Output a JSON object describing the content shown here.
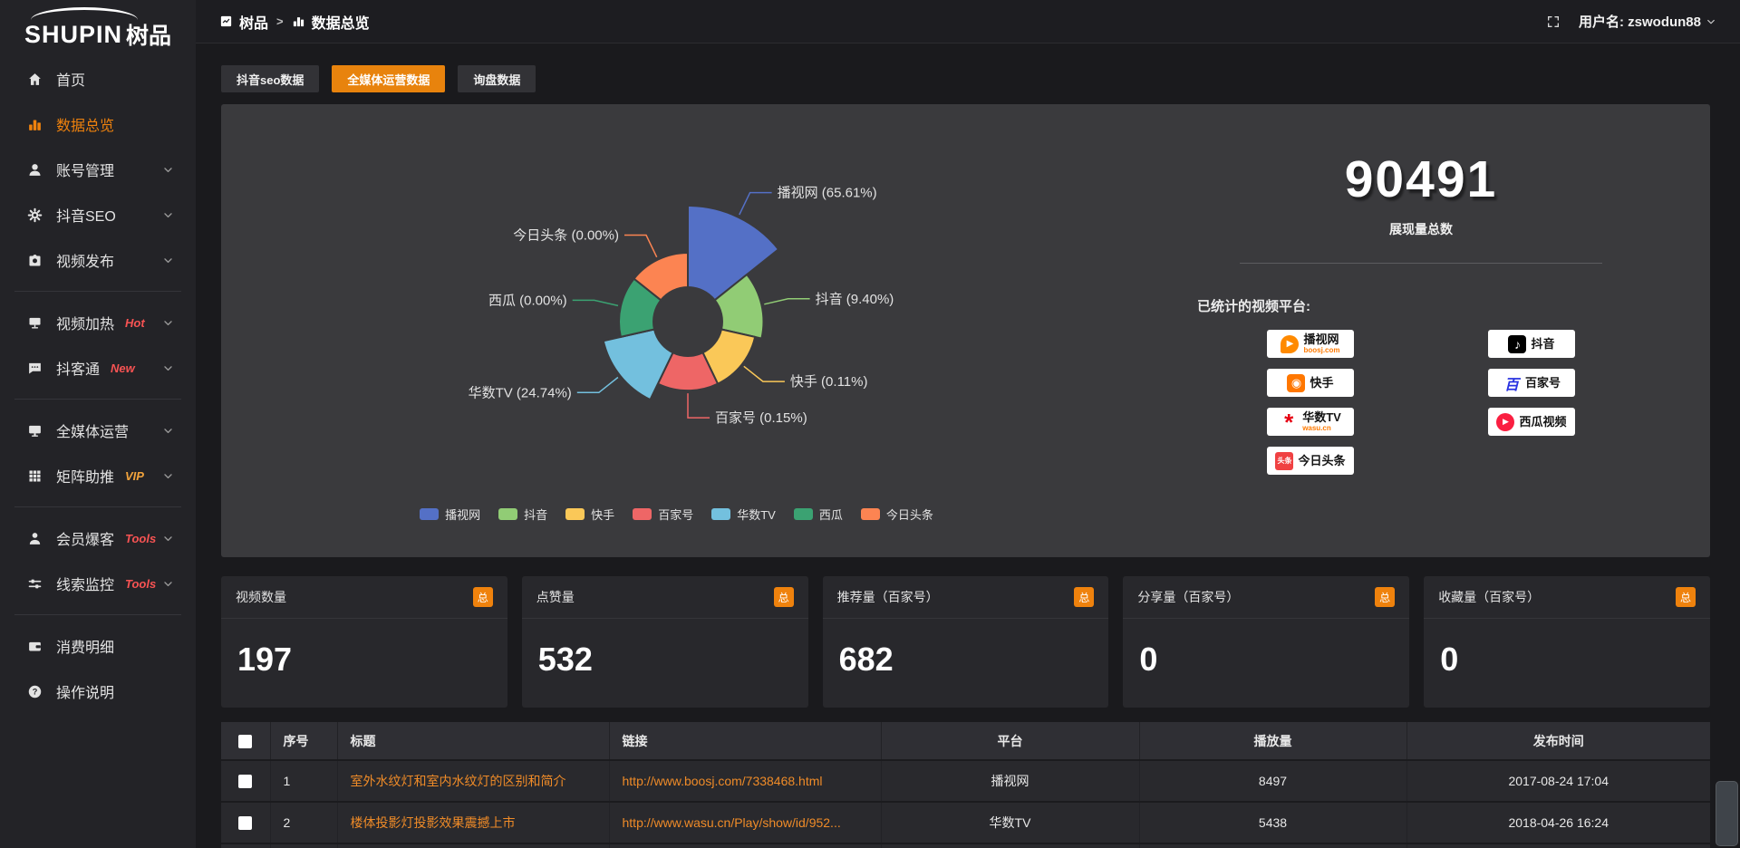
{
  "brand": {
    "name_en": "SHUPIN",
    "name_cn": "树品"
  },
  "topbar": {
    "breadcrumb": {
      "separator": ">",
      "items": [
        {
          "label": "树品",
          "icon": "app",
          "key": "shupin"
        },
        {
          "label": "数据总览",
          "icon": "chart-bar",
          "key": "data-overview"
        }
      ]
    },
    "username": "用户名: zswodun88"
  },
  "sidebar": {
    "items": [
      {
        "key": "home",
        "label": "首页",
        "icon": "home"
      },
      {
        "key": "data-overview",
        "label": "数据总览",
        "icon": "chart-bar",
        "active": true
      },
      {
        "key": "account-management",
        "label": "账号管理",
        "icon": "user",
        "chevron": true
      },
      {
        "key": "douyin-seo",
        "label": "抖音SEO",
        "icon": "gear",
        "chevron": true
      },
      {
        "key": "video-publish",
        "label": "视频发布",
        "icon": "publish",
        "chevron": true,
        "divider_after": true
      },
      {
        "key": "video-heat",
        "label": "视频加热",
        "icon": "heat",
        "tag": "Hot",
        "tag_color": "#f75353",
        "chevron": true
      },
      {
        "key": "douketong",
        "label": "抖客通",
        "icon": "chat",
        "tag": "New",
        "tag_color": "#f75353",
        "chevron": true,
        "divider_after": true
      },
      {
        "key": "media-operation",
        "label": "全媒体运营",
        "icon": "monitor",
        "chevron": true
      },
      {
        "key": "matrix-boost",
        "label": "矩阵助推",
        "icon": "grid",
        "tag": "VIP",
        "tag_color": "#f2a33c",
        "chevron": true,
        "divider_after": true
      },
      {
        "key": "member-baoke",
        "label": "会员爆客",
        "icon": "member",
        "tag": "Tools",
        "tag_color": "#f75353",
        "chevron": true
      },
      {
        "key": "clue-monitor",
        "label": "线索监控",
        "icon": "sliders",
        "tag": "Tools",
        "tag_color": "#f75353",
        "chevron": true,
        "divider_after": true
      },
      {
        "key": "consumption-detail",
        "label": "消费明细",
        "icon": "wallet"
      },
      {
        "key": "operation-guide",
        "label": "操作说明",
        "icon": "question"
      }
    ]
  },
  "tabs": [
    {
      "key": "douyin-seo-data",
      "label": "抖音seo数据",
      "active": false
    },
    {
      "key": "media-operation-data",
      "label": "全媒体运营数据",
      "active": true
    },
    {
      "key": "inquiry-data",
      "label": "询盘数据",
      "active": false
    }
  ],
  "chart_data": {
    "type": "pie",
    "style": "rose",
    "legend_position": "bottom",
    "label_format": "{name} ({percent}%)",
    "series": [
      {
        "name": "播视网",
        "percent": 65.61,
        "color": "#5470c6"
      },
      {
        "name": "抖音",
        "percent": 9.4,
        "color": "#91cc75"
      },
      {
        "name": "快手",
        "percent": 0.11,
        "color": "#fac858"
      },
      {
        "name": "百家号",
        "percent": 0.15,
        "color": "#ee6666"
      },
      {
        "name": "华数TV",
        "percent": 24.74,
        "color": "#73c0de"
      },
      {
        "name": "西瓜",
        "percent": 0.0,
        "color": "#3ba272"
      },
      {
        "name": "今日头条",
        "percent": 0.0,
        "color": "#fc8452"
      }
    ]
  },
  "summary": {
    "total": "90491",
    "total_label": "展现量总数",
    "platforms_title": "已统计的视频平台:",
    "badges": [
      {
        "name": "播视网",
        "subtext": "boosj.com",
        "logo": "boosj"
      },
      {
        "name": "快手",
        "logo": "kuaishou"
      },
      {
        "name": "华数TV",
        "subtext": "wasu.cn",
        "logo": "wasu"
      },
      {
        "name": "今日头条",
        "logo": "toutiao"
      },
      {
        "name": "抖音",
        "logo": "douyin"
      },
      {
        "name": "百家号",
        "logo": "baijia"
      },
      {
        "name": "西瓜视频",
        "logo": "xigua"
      }
    ]
  },
  "stat_cards": [
    {
      "key": "video-count",
      "title": "视频数量",
      "badge": "总",
      "value": "197"
    },
    {
      "key": "like-count",
      "title": "点赞量",
      "badge": "总",
      "value": "532"
    },
    {
      "key": "recommend-count",
      "title": "推荐量（百家号）",
      "badge": "总",
      "value": "682"
    },
    {
      "key": "share-count",
      "title": "分享量（百家号）",
      "badge": "总",
      "value": "0"
    },
    {
      "key": "favorite-count",
      "title": "收藏量（百家号）",
      "badge": "总",
      "value": "0"
    }
  ],
  "table": {
    "columns": [
      "序号",
      "标题",
      "链接",
      "平台",
      "播放量",
      "发布时间"
    ],
    "rows": [
      {
        "num": "1",
        "title": "室外水纹灯和室内水纹灯的区别和简介",
        "link": "http://www.boosj.com/7338468.html",
        "platform": "播视网",
        "plays": "8497",
        "time": "2017-08-24 17:04"
      },
      {
        "num": "2",
        "title": "楼体投影灯投影效果震撼上市",
        "link": "http://www.wasu.cn/Play/show/id/952...",
        "platform": "华数TV",
        "plays": "5438",
        "time": "2018-04-26 16:24"
      }
    ]
  },
  "colors": {
    "accent_orange": "#e8830d",
    "sidebar_active": "#ef820d",
    "link_orange": "#ef8b28",
    "tag_red": "#f75353",
    "tag_orange": "#f2a33c",
    "panel_bg": "#3a3a3d"
  }
}
